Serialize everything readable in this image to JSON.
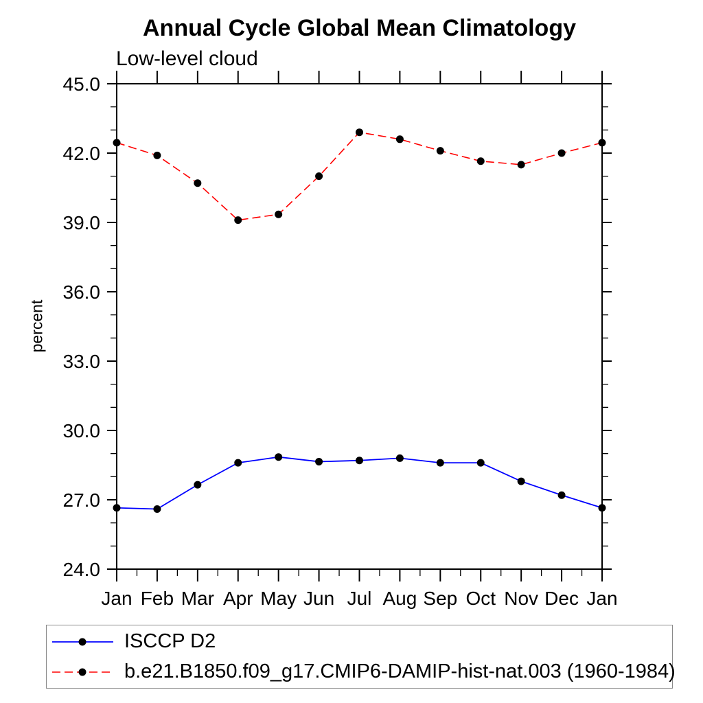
{
  "chart_data": {
    "type": "line",
    "title": "Annual Cycle Global Mean Climatology",
    "subtitle": "Low-level cloud",
    "ylabel": "percent",
    "categories": [
      "Jan",
      "Feb",
      "Mar",
      "Apr",
      "May",
      "Jun",
      "Jul",
      "Aug",
      "Sep",
      "Oct",
      "Nov",
      "Dec",
      "Jan"
    ],
    "series": [
      {
        "name": "ISCCP D2",
        "color": "#0000FF",
        "line_style": "solid",
        "marker": "filled-circle",
        "marker_color": "#000000",
        "values": [
          26.65,
          26.6,
          27.65,
          28.6,
          28.85,
          28.65,
          28.7,
          28.8,
          28.6,
          28.6,
          27.8,
          27.2,
          26.65
        ]
      },
      {
        "name": "b.e21.B1850.f09_g17.CMIP6-DAMIP-hist-nat.003 (1960-1984)",
        "color": "#FF0000",
        "line_style": "dashed",
        "marker": "filled-circle",
        "marker_color": "#000000",
        "values": [
          42.45,
          41.9,
          40.7,
          39.1,
          39.35,
          41.0,
          42.9,
          42.6,
          42.1,
          41.65,
          41.5,
          42.0,
          42.45
        ]
      }
    ],
    "ylim": [
      24.0,
      45.0
    ],
    "y_major_ticks": [
      24.0,
      27.0,
      30.0,
      33.0,
      36.0,
      39.0,
      42.0,
      45.0
    ],
    "y_minor_step": 1.0,
    "y_tick_decimals": 1,
    "x_minor_ticks": "half-month-bottom-only",
    "grid": false,
    "axis_color": "#000000",
    "legend_position": "bottom-left-box",
    "legend_border_color": "#888888"
  }
}
